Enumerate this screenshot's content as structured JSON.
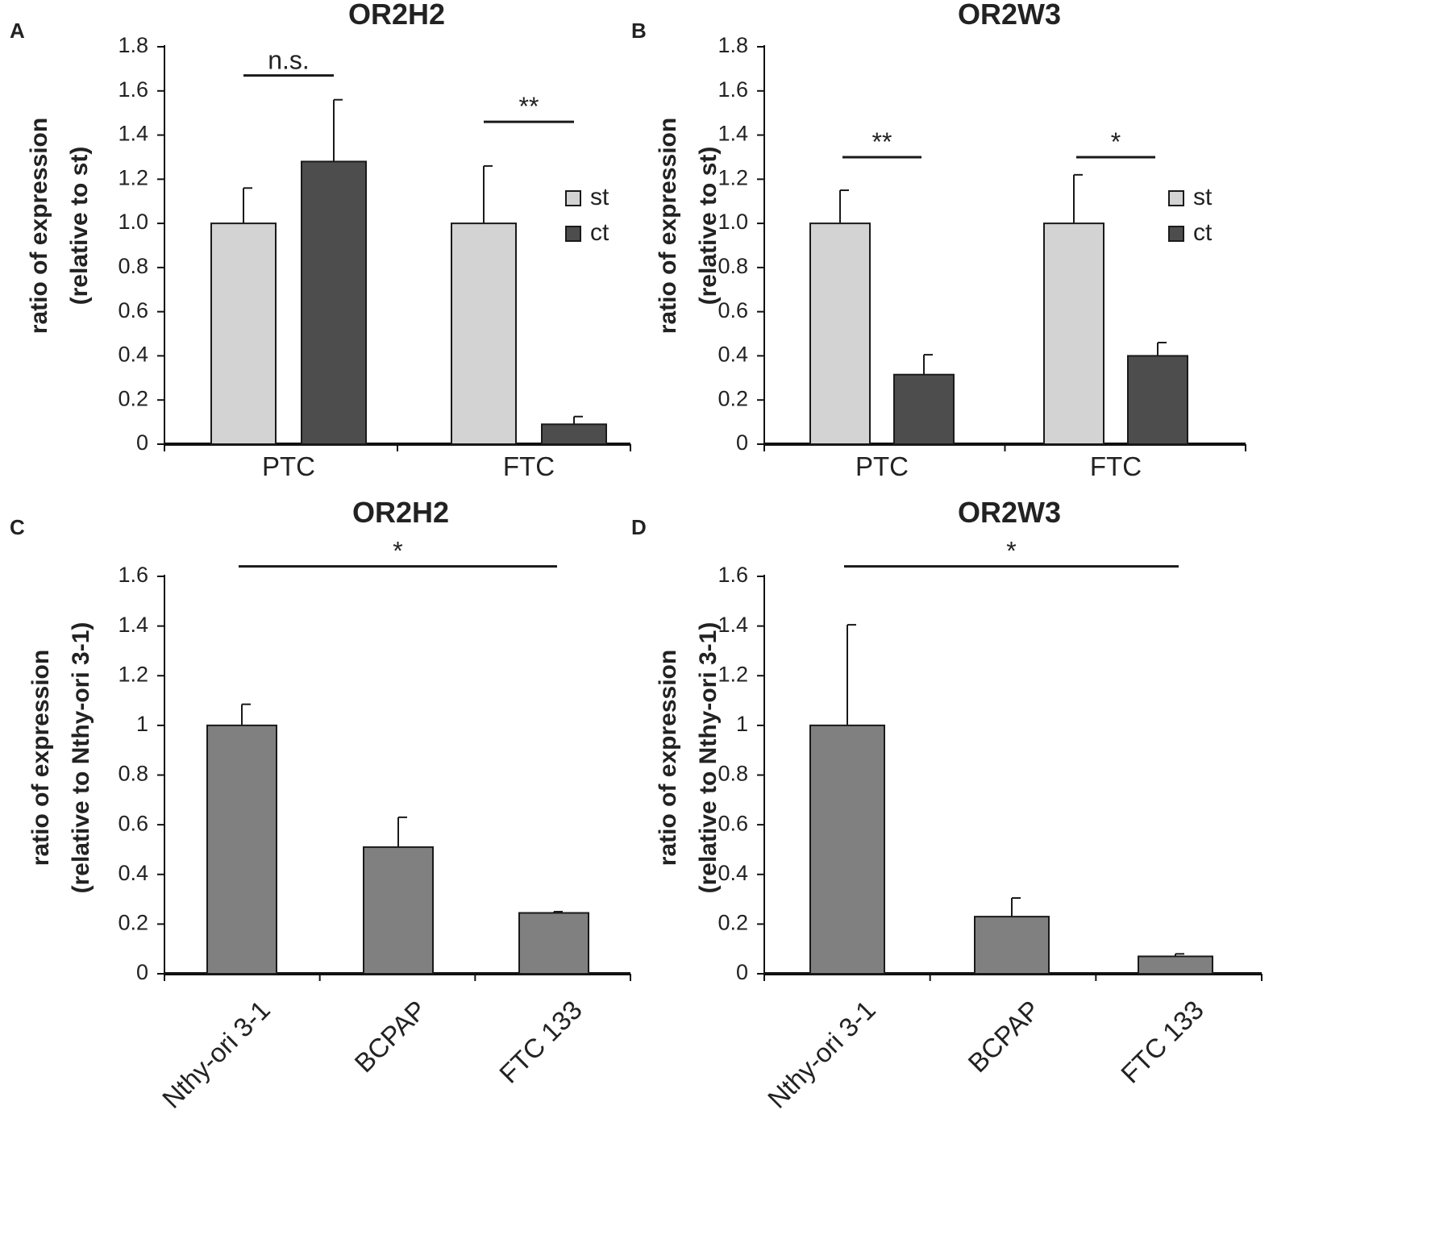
{
  "colors": {
    "st": "#d3d3d3",
    "ct": "#4d4d4d",
    "single": "#808080",
    "axis": "#111111",
    "text": "#222222"
  },
  "chart_data": [
    {
      "panel": "A",
      "type": "bar",
      "title": "OR2H2",
      "ylabel": [
        "ratio of expression",
        "(relative to st)"
      ],
      "categories": [
        "PTC",
        "FTC"
      ],
      "ylim": [
        0,
        1.8
      ],
      "yticks": [
        "0",
        "0.2",
        "0.4",
        "0.6",
        "0.8",
        "1.0",
        "1.2",
        "1.4",
        "1.6",
        "1.8"
      ],
      "series": [
        {
          "name": "st",
          "values": [
            1.0,
            1.0
          ],
          "errors": [
            0.16,
            0.26
          ]
        },
        {
          "name": "ct",
          "values": [
            1.28,
            0.09
          ],
          "errors": [
            0.28,
            0.035
          ]
        }
      ],
      "legend": [
        "st",
        "ct"
      ],
      "significance": [
        {
          "category": 0,
          "label": "n.s.",
          "y": 1.67
        },
        {
          "category": 1,
          "label": "**",
          "y": 1.46
        }
      ]
    },
    {
      "panel": "B",
      "type": "bar",
      "title": "OR2W3",
      "ylabel": [
        "ratio of expression",
        "(relative to st)"
      ],
      "categories": [
        "PTC",
        "FTC"
      ],
      "ylim": [
        0,
        1.8
      ],
      "yticks": [
        "0",
        "0.2",
        "0.4",
        "0.6",
        "0.8",
        "1.0",
        "1.2",
        "1.4",
        "1.6",
        "1.8"
      ],
      "series": [
        {
          "name": "st",
          "values": [
            1.0,
            1.0
          ],
          "errors": [
            0.15,
            0.22
          ]
        },
        {
          "name": "ct",
          "values": [
            0.315,
            0.4
          ],
          "errors": [
            0.09,
            0.06
          ]
        }
      ],
      "legend": [
        "st",
        "ct"
      ],
      "significance": [
        {
          "category": 0,
          "label": "**",
          "y": 1.3
        },
        {
          "category": 1,
          "label": "*",
          "y": 1.3
        }
      ]
    },
    {
      "panel": "C",
      "type": "bar",
      "title": "OR2H2",
      "ylabel": [
        "ratio of expression",
        "(relative to Nthy-ori 3-1)"
      ],
      "categories": [
        "Nthy-ori 3-1",
        "BCPAP",
        "FTC 133"
      ],
      "ylim": [
        0,
        1.6
      ],
      "yticks": [
        "0",
        "0.2",
        "0.4",
        "0.6",
        "0.8",
        "1",
        "1.2",
        "1.4",
        "1.6"
      ],
      "series": [
        {
          "name": "expression",
          "values": [
            1.0,
            0.51,
            0.245
          ],
          "errors": [
            0.085,
            0.12,
            0.005
          ]
        }
      ],
      "significance": [
        {
          "from": 0,
          "to": 2,
          "label": "*",
          "y": 1.64
        }
      ]
    },
    {
      "panel": "D",
      "type": "bar",
      "title": "OR2W3",
      "ylabel": [
        "ratio of expression",
        "(relative to Nthy-ori 3-1)"
      ],
      "categories": [
        "Nthy-ori 3-1",
        "BCPAP",
        "FTC 133"
      ],
      "ylim": [
        0,
        1.6
      ],
      "yticks": [
        "0",
        "0.2",
        "0.4",
        "0.6",
        "0.8",
        "1",
        "1.2",
        "1.4",
        "1.6"
      ],
      "series": [
        {
          "name": "expression",
          "values": [
            1.0,
            0.23,
            0.07
          ],
          "errors": [
            0.405,
            0.075,
            0.01
          ]
        }
      ],
      "significance": [
        {
          "from": 0,
          "to": 2,
          "label": "*",
          "y": 1.64
        }
      ]
    }
  ]
}
